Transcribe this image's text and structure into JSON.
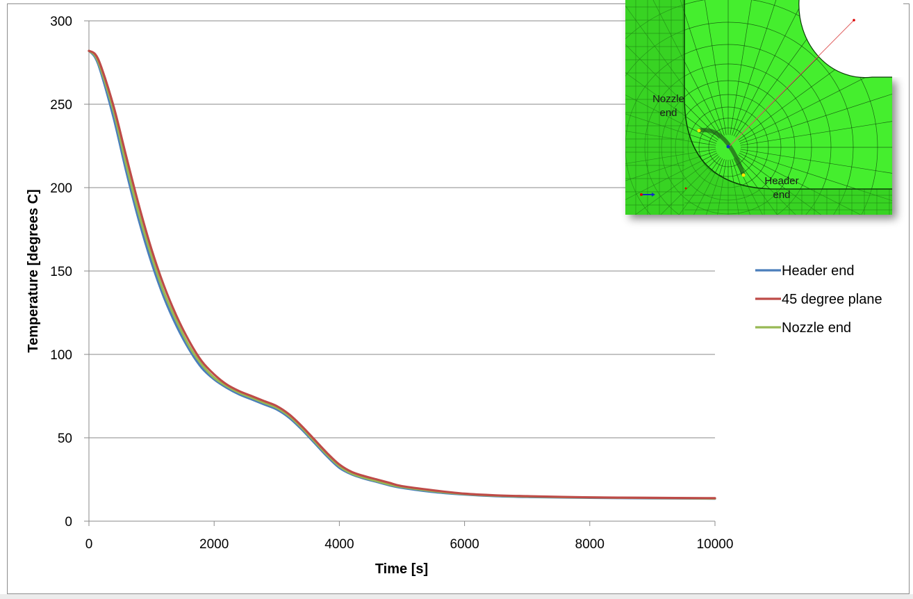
{
  "chart_data": {
    "type": "line",
    "title": "",
    "xlabel": "Time [s]",
    "ylabel": "Temperature [degrees C]",
    "xlim": [
      0,
      10000
    ],
    "ylim": [
      0,
      300
    ],
    "xticks": [
      0,
      2000,
      4000,
      6000,
      8000,
      10000
    ],
    "yticks": [
      0,
      50,
      100,
      150,
      200,
      250,
      300
    ],
    "xtick_labels": [
      "0",
      "2000",
      "4000",
      "6000",
      "8000",
      "10000"
    ],
    "ytick_labels": [
      "0",
      "50",
      "100",
      "150",
      "200",
      "250",
      "300"
    ],
    "grid": "horizontal",
    "legend_position": "right",
    "series": [
      {
        "name": "Header end",
        "color": "#4a7ebb",
        "x": [
          0,
          100,
          200,
          400,
          600,
          800,
          1000,
          1200,
          1400,
          1600,
          1800,
          2000,
          2200,
          2400,
          2600,
          2800,
          3000,
          3200,
          3400,
          3600,
          3800,
          4000,
          4200,
          4400,
          4600,
          4800,
          5000,
          5500,
          6000,
          6500,
          7000,
          8000,
          9000,
          10000
        ],
        "y": [
          282,
          278,
          268,
          241,
          209,
          180,
          155,
          134,
          117,
          103,
          92,
          85,
          80,
          76,
          73,
          70,
          67,
          62,
          55,
          47,
          39,
          32,
          28,
          25.5,
          23.5,
          21.5,
          20,
          17.5,
          16,
          15,
          14.5,
          14,
          13.7,
          13.5
        ]
      },
      {
        "name": "45 degree plane",
        "color": "#be4b48",
        "x": [
          0,
          100,
          200,
          400,
          600,
          800,
          1000,
          1200,
          1400,
          1600,
          1800,
          2000,
          2200,
          2400,
          2600,
          2800,
          3000,
          3200,
          3400,
          3600,
          3800,
          4000,
          4200,
          4400,
          4600,
          4800,
          5000,
          5500,
          6000,
          6500,
          7000,
          8000,
          9000,
          10000
        ],
        "y": [
          282,
          280,
          272,
          248,
          218,
          189,
          163,
          141,
          123,
          108,
          96,
          88,
          82,
          78,
          75,
          72,
          69,
          64,
          57,
          49,
          41,
          34,
          29.5,
          27,
          25,
          23,
          21,
          18.5,
          16.5,
          15.5,
          15,
          14.3,
          14,
          13.8
        ]
      },
      {
        "name": "Nozzle end",
        "color": "#98b954",
        "x": [
          0,
          100,
          200,
          400,
          600,
          800,
          1000,
          1200,
          1400,
          1600,
          1800,
          2000,
          2200,
          2400,
          2600,
          2800,
          3000,
          3200,
          3400,
          3600,
          3800,
          4000,
          4200,
          4400,
          4600,
          4800,
          5000,
          5500,
          6000,
          6500,
          7000,
          8000,
          9000,
          10000
        ],
        "y": [
          282,
          279,
          270,
          245,
          213,
          184,
          159,
          137,
          120,
          105,
          94,
          86,
          81,
          77,
          74,
          71,
          68,
          63,
          56,
          48,
          40,
          33,
          28.5,
          26,
          24,
          22,
          20.5,
          18,
          16.3,
          15.3,
          14.8,
          14.2,
          13.9,
          13.6
        ]
      }
    ],
    "inset": {
      "labels": {
        "nozzle_end": [
          "Nozzle",
          "end"
        ],
        "header_end": [
          "Header",
          "end"
        ]
      },
      "mesh_color": "#44ee2e"
    }
  }
}
